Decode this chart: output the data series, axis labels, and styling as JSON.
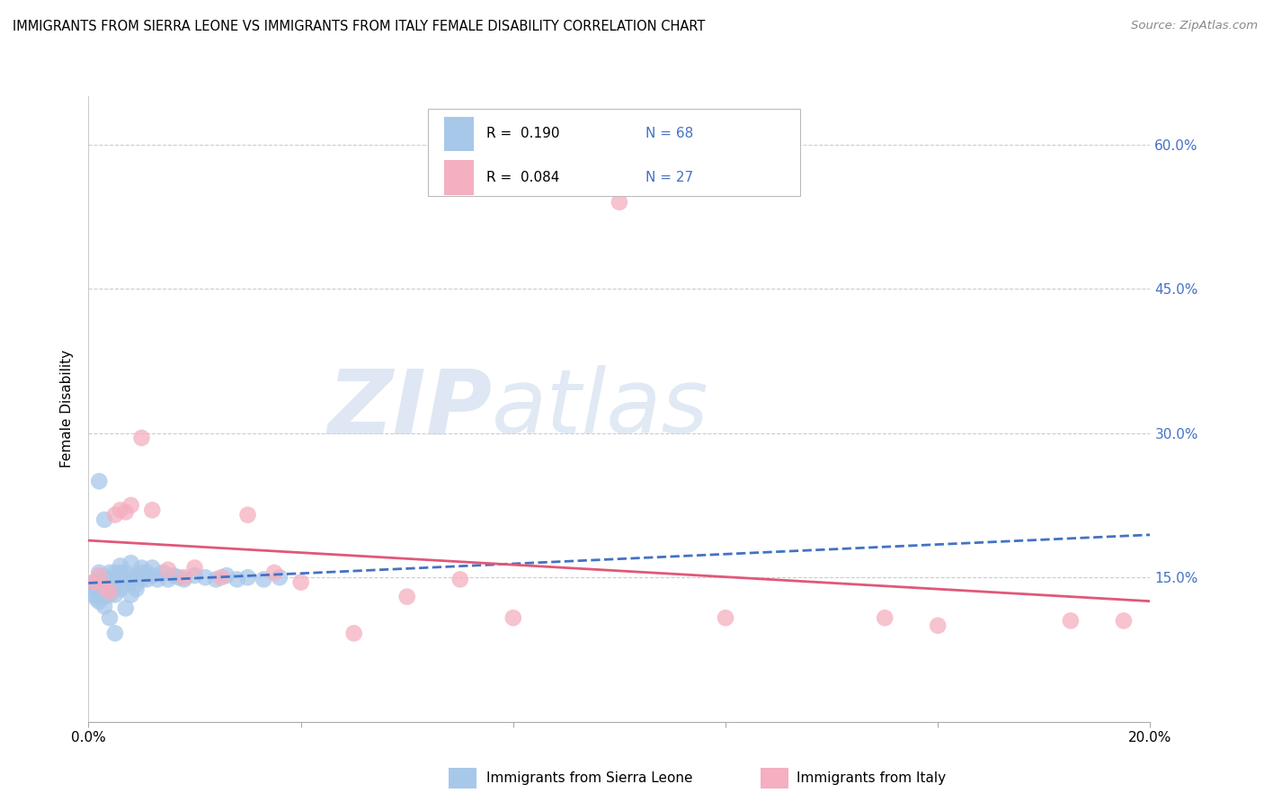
{
  "title": "IMMIGRANTS FROM SIERRA LEONE VS IMMIGRANTS FROM ITALY FEMALE DISABILITY CORRELATION CHART",
  "source": "Source: ZipAtlas.com",
  "ylabel": "Female Disability",
  "x_min": 0.0,
  "x_max": 0.2,
  "y_min": 0.0,
  "y_max": 0.65,
  "x_ticks": [
    0.0,
    0.04,
    0.08,
    0.12,
    0.16,
    0.2
  ],
  "y_ticks": [
    0.15,
    0.3,
    0.45,
    0.6
  ],
  "y_tick_labels": [
    "15.0%",
    "30.0%",
    "45.0%",
    "60.0%"
  ],
  "color_sierra": "#a8c8ea",
  "color_italy": "#f4afc0",
  "trendline_sierra_color": "#4472c4",
  "trendline_italy_color": "#e05878",
  "watermark_zip": "ZIP",
  "watermark_atlas": "atlas",
  "sierra_x": [
    0.0005,
    0.001,
    0.001,
    0.001,
    0.0015,
    0.0015,
    0.002,
    0.002,
    0.002,
    0.002,
    0.0025,
    0.0025,
    0.003,
    0.003,
    0.003,
    0.003,
    0.003,
    0.0035,
    0.0035,
    0.004,
    0.004,
    0.004,
    0.004,
    0.0045,
    0.0045,
    0.005,
    0.005,
    0.005,
    0.005,
    0.006,
    0.006,
    0.006,
    0.007,
    0.007,
    0.007,
    0.008,
    0.008,
    0.009,
    0.009,
    0.01,
    0.01,
    0.01,
    0.011,
    0.011,
    0.012,
    0.012,
    0.013,
    0.014,
    0.015,
    0.016,
    0.017,
    0.018,
    0.02,
    0.022,
    0.024,
    0.026,
    0.028,
    0.03,
    0.033,
    0.036,
    0.002,
    0.003,
    0.004,
    0.005,
    0.006,
    0.007,
    0.008,
    0.009
  ],
  "sierra_y": [
    0.14,
    0.132,
    0.145,
    0.138,
    0.128,
    0.142,
    0.135,
    0.148,
    0.125,
    0.155,
    0.138,
    0.145,
    0.13,
    0.143,
    0.15,
    0.135,
    0.12,
    0.148,
    0.142,
    0.138,
    0.155,
    0.145,
    0.132,
    0.148,
    0.142,
    0.155,
    0.14,
    0.145,
    0.132,
    0.148,
    0.155,
    0.162,
    0.148,
    0.155,
    0.143,
    0.148,
    0.165,
    0.152,
    0.143,
    0.155,
    0.148,
    0.16,
    0.155,
    0.148,
    0.152,
    0.16,
    0.148,
    0.155,
    0.148,
    0.152,
    0.15,
    0.148,
    0.152,
    0.15,
    0.148,
    0.152,
    0.148,
    0.15,
    0.148,
    0.15,
    0.25,
    0.21,
    0.108,
    0.092,
    0.138,
    0.118,
    0.132,
    0.138
  ],
  "italy_x": [
    0.001,
    0.002,
    0.003,
    0.004,
    0.005,
    0.006,
    0.007,
    0.008,
    0.01,
    0.012,
    0.015,
    0.018,
    0.02,
    0.025,
    0.03,
    0.035,
    0.04,
    0.05,
    0.06,
    0.07,
    0.08,
    0.1,
    0.12,
    0.15,
    0.16,
    0.185,
    0.195
  ],
  "italy_y": [
    0.145,
    0.152,
    0.14,
    0.135,
    0.215,
    0.22,
    0.218,
    0.225,
    0.295,
    0.22,
    0.158,
    0.15,
    0.16,
    0.15,
    0.215,
    0.155,
    0.145,
    0.092,
    0.13,
    0.148,
    0.108,
    0.54,
    0.108,
    0.108,
    0.1,
    0.105,
    0.105
  ]
}
